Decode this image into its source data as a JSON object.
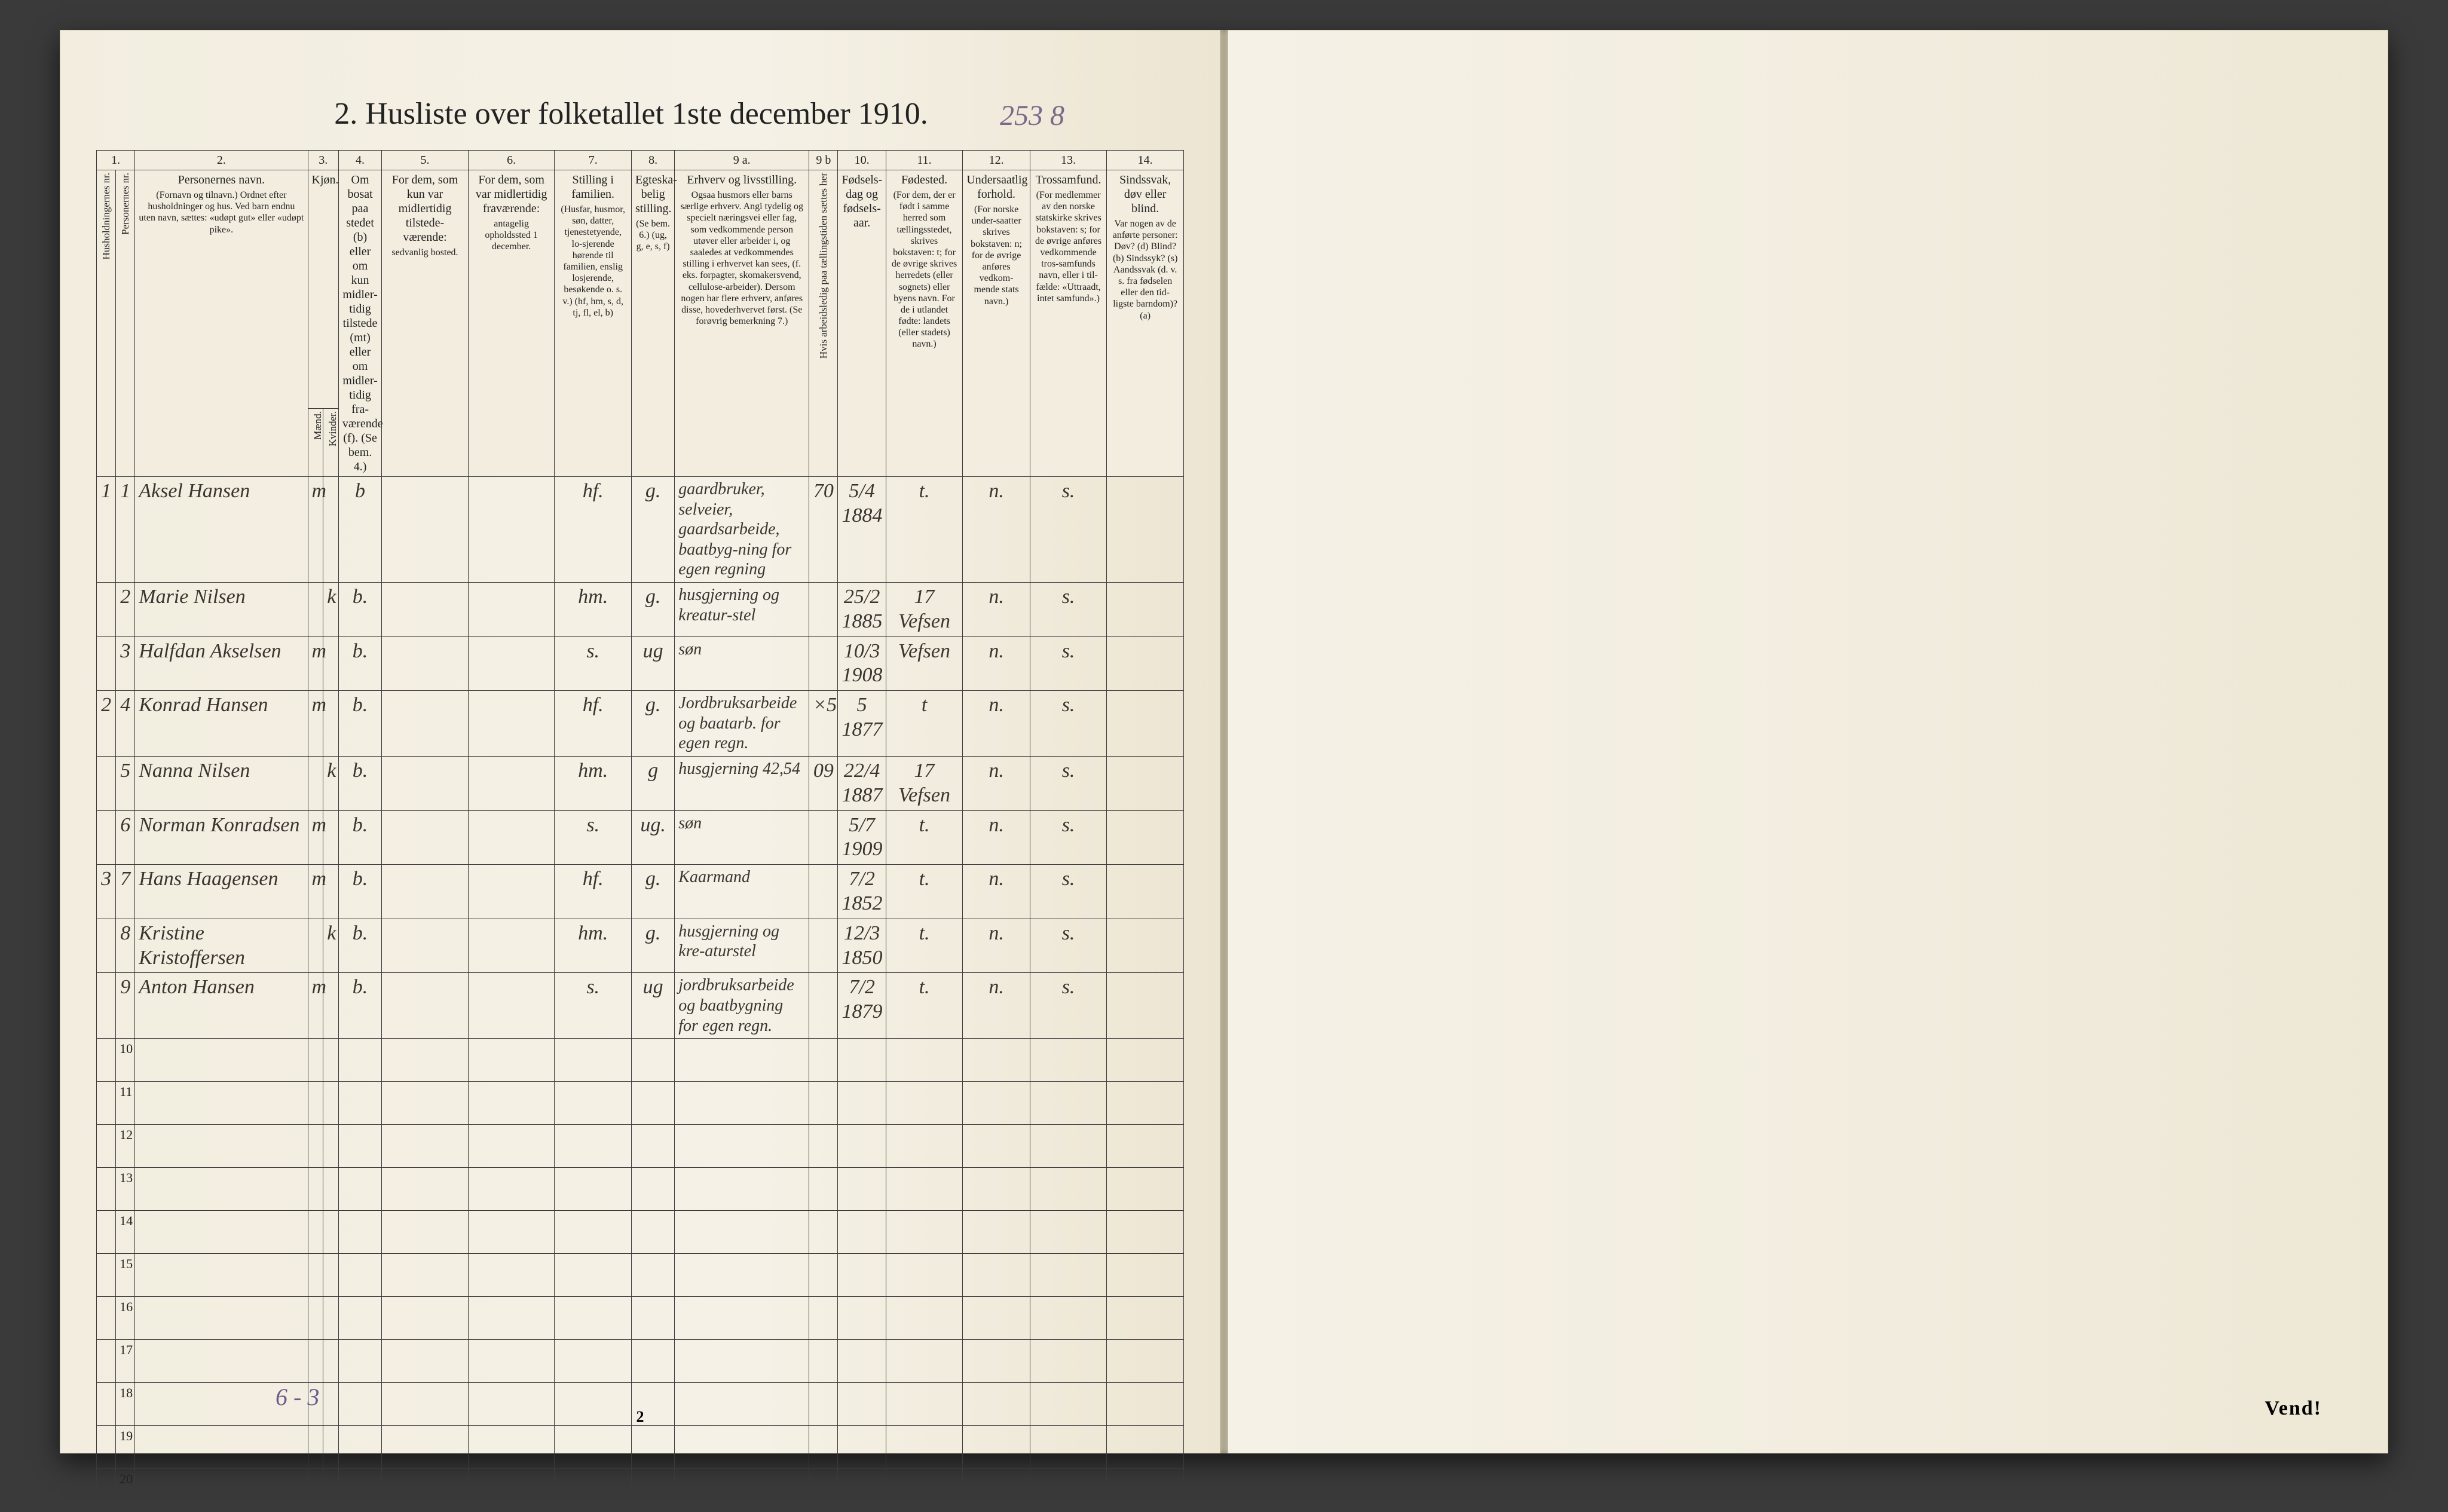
{
  "title": "2.  Husliste over folketallet 1ste december 1910.",
  "pencil_topright": "253 8",
  "footer_vend": "Vend!",
  "page_bottom_num": "2",
  "pencil_tally": "6 - 3",
  "col_numbers": [
    "1.",
    "2.",
    "3.",
    "4.",
    "5.",
    "6.",
    "7.",
    "8.",
    "9 a.",
    "9 b",
    "10.",
    "11.",
    "12.",
    "13.",
    "14."
  ],
  "headers": {
    "c1a": "Husholdningernes nr.",
    "c1b": "Personernes nr.",
    "c2": "Personernes navn.",
    "c2_sub": "(Fornavn og tilnavn.)  Ordnet efter husholdninger og hus. Ved barn endnu uten navn, sættes: «udøpt gut» eller «udøpt pike».",
    "c3": "Kjøn.",
    "c3_sub_m": "Mænd.",
    "c3_sub_k": "Kvinder.",
    "c3_mk": "m.  k.",
    "c4": "Om bosat paa stedet (b) eller om kun midler-tidig tilstede (mt) eller om midler-tidig fra-værende (f). (Se bem. 4.)",
    "c5": "For dem, som kun var midlertidig tilstede-værende:",
    "c5_sub": "sedvanlig bosted.",
    "c6": "For dem, som var midlertidig fraværende:",
    "c6_sub": "antagelig opholdssted 1 december.",
    "c7": "Stilling i familien.",
    "c7_sub": "(Husfar, husmor, søn, datter, tjenestetyende, lo-sjerende hørende til familien, enslig losjerende, besøkende o. s. v.) (hf, hm, s, d, tj, fl, el, b)",
    "c8": "Egteska-belig stilling.",
    "c8_sub": "(Se bem. 6.) (ug, g, e, s, f)",
    "c9a": "Erhverv og livsstilling.",
    "c9a_sub": "Ogsaa husmors eller barns særlige erhverv. Angi tydelig og specielt næringsvei eller fag, som vedkommende person utøver eller arbeider i, og saaledes at vedkommendes stilling i erhvervet kan sees, (f. eks. forpagter, skomakersvend, cellulose-arbeider). Dersom nogen har flere erhverv, anføres disse, hovederhvervet først. (Se forøvrig bemerkning 7.)",
    "c9b": "Hvis arbeidsledig paa tællingstiden sættes her",
    "c10": "Fødsels-dag og fødsels-aar.",
    "c11": "Fødested.",
    "c11_sub": "(For dem, der er født i samme herred som tællingsstedet, skrives bokstaven: t; for de øvrige skrives herredets (eller sognets) eller byens navn. For de i utlandet fødte: landets (eller stadets) navn.)",
    "c12": "Undersaatlig forhold.",
    "c12_sub": "(For norske under-saatter skrives bokstaven: n; for de øvrige anføres vedkom-mende stats navn.)",
    "c13": "Trossamfund.",
    "c13_sub": "(For medlemmer av den norske statskirke skrives bokstaven: s; for de øvrige anføres vedkommende tros-samfunds navn, eller i til-fælde: «Uttraadt, intet samfund».)",
    "c14": "Sindssvak, døv eller blind.",
    "c14_sub": "Var nogen av de anførte personer: Døv? (d) Blind? (b) Sindssyk? (s) Aandssvak (d. v. s. fra fødselen eller den tid-ligste barndom)? (a)"
  },
  "rows": [
    {
      "hh": "1",
      "p": "1",
      "name": "Aksel Hansen",
      "sex": "m",
      "res": "b",
      "fam": "hf.",
      "mar": "g.",
      "occ": "gaardbruker, selveier, gaardsarbeide, baatbyg-ning for egen regning",
      "wrk": "70",
      "birth": "5/4 1884",
      "place": "t.",
      "nat": "n.",
      "rel": "s."
    },
    {
      "hh": "",
      "p": "2",
      "name": "Marie Nilsen",
      "sex": "k",
      "res": "b.",
      "fam": "hm.",
      "mar": "g.",
      "occ": "husgjerning og kreatur-stel",
      "wrk": "",
      "birth": "25/2 1885",
      "place": "17 Vefsen",
      "nat": "n.",
      "rel": "s."
    },
    {
      "hh": "",
      "p": "3",
      "name": "Halfdan Akselsen",
      "sex": "m",
      "res": "b.",
      "fam": "s.",
      "mar": "ug",
      "occ": "søn",
      "wrk": "",
      "birth": "10/3 1908",
      "place": "Vefsen",
      "nat": "n.",
      "rel": "s."
    },
    {
      "hh": "2",
      "p": "4",
      "name": "Konrad Hansen",
      "sex": "m",
      "res": "b.",
      "fam": "hf.",
      "mar": "g.",
      "occ": "Jordbruksarbeide og baatarb. for egen regn.",
      "wrk": "×5",
      "birth": "5 1877",
      "place": "t",
      "nat": "n.",
      "rel": "s."
    },
    {
      "hh": "",
      "p": "5",
      "name": "Nanna Nilsen",
      "sex": "k",
      "res": "b.",
      "fam": "hm.",
      "mar": "g",
      "occ": "husgjerning  42,54",
      "wrk": "09",
      "birth": "22/4 1887",
      "place": "17 Vefsen",
      "nat": "n.",
      "rel": "s."
    },
    {
      "hh": "",
      "p": "6",
      "name": "Norman Konradsen",
      "sex": "m",
      "res": "b.",
      "fam": "s.",
      "mar": "ug.",
      "occ": "søn",
      "wrk": "",
      "birth": "5/7 1909",
      "place": "t.",
      "nat": "n.",
      "rel": "s."
    },
    {
      "hh": "3",
      "p": "7",
      "name": "Hans Haagensen",
      "sex": "m",
      "res": "b.",
      "fam": "hf.",
      "mar": "g.",
      "occ": "Kaarmand",
      "wrk": "",
      "birth": "7/2 1852",
      "place": "t.",
      "nat": "n.",
      "rel": "s."
    },
    {
      "hh": "",
      "p": "8",
      "name": "Kristine Kristoffersen",
      "sex": "k",
      "res": "b.",
      "fam": "hm.",
      "mar": "g.",
      "occ": "husgjerning og kre-aturstel",
      "wrk": "",
      "birth": "12/3 1850",
      "place": "t.",
      "nat": "n.",
      "rel": "s."
    },
    {
      "hh": "",
      "p": "9",
      "name": "Anton Hansen",
      "sex": "m",
      "res": "b.",
      "fam": "s.",
      "mar": "ug",
      "occ": "jordbruksarbeide og baatbygning for egen regn.",
      "wrk": "",
      "birth": "7/2 1879",
      "place": "t.",
      "nat": "n.",
      "rel": "s."
    }
  ],
  "empty_rows": [
    "10",
    "11",
    "12",
    "13",
    "14",
    "15",
    "16",
    "17",
    "18",
    "19",
    "20"
  ],
  "colors": {
    "page_bg": "#f5f1e6",
    "ink": "#222222",
    "handwriting": "#3a3530",
    "pencil": "#7a6a8a",
    "rule": "#3a3a3a"
  },
  "colgroup_pct": [
    2.0,
    2.0,
    18.0,
    1.6,
    1.6,
    4.5,
    9.0,
    9.0,
    8.0,
    4.5,
    14.0,
    3.0,
    5.0,
    8.0,
    7.0,
    8.0,
    8.0
  ]
}
